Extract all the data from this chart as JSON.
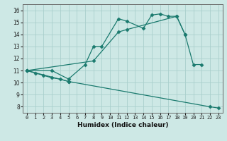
{
  "xlabel": "Humidex (Indice chaleur)",
  "bg_color": "#cde8e5",
  "line_color": "#1a7a6e",
  "grid_color": "#aacfcc",
  "xlim": [
    -0.5,
    23.5
  ],
  "ylim": [
    7.5,
    16.5
  ],
  "xticks": [
    0,
    1,
    2,
    3,
    4,
    5,
    6,
    7,
    8,
    9,
    10,
    11,
    12,
    13,
    14,
    15,
    16,
    17,
    18,
    19,
    20,
    21,
    22,
    23
  ],
  "yticks": [
    8,
    9,
    10,
    11,
    12,
    13,
    14,
    15,
    16
  ],
  "line1_x": [
    0,
    1,
    2,
    3,
    4,
    5
  ],
  "line1_y": [
    11.0,
    10.8,
    10.6,
    10.4,
    10.3,
    10.1
  ],
  "line2_x": [
    0,
    3,
    5,
    7,
    8,
    9,
    11,
    12,
    14,
    15,
    16,
    17,
    18,
    19,
    20,
    21
  ],
  "line2_y": [
    11.0,
    11.0,
    10.3,
    11.5,
    13.0,
    13.0,
    15.3,
    15.1,
    14.5,
    15.6,
    15.7,
    15.5,
    15.5,
    14.0,
    11.5,
    11.5
  ],
  "line3_x": [
    0,
    5,
    22,
    23
  ],
  "line3_y": [
    11.0,
    10.1,
    8.0,
    7.9
  ],
  "line4_x": [
    0,
    8,
    11,
    12,
    18,
    19
  ],
  "line4_y": [
    11.0,
    11.8,
    14.2,
    14.4,
    15.5,
    14.0
  ]
}
